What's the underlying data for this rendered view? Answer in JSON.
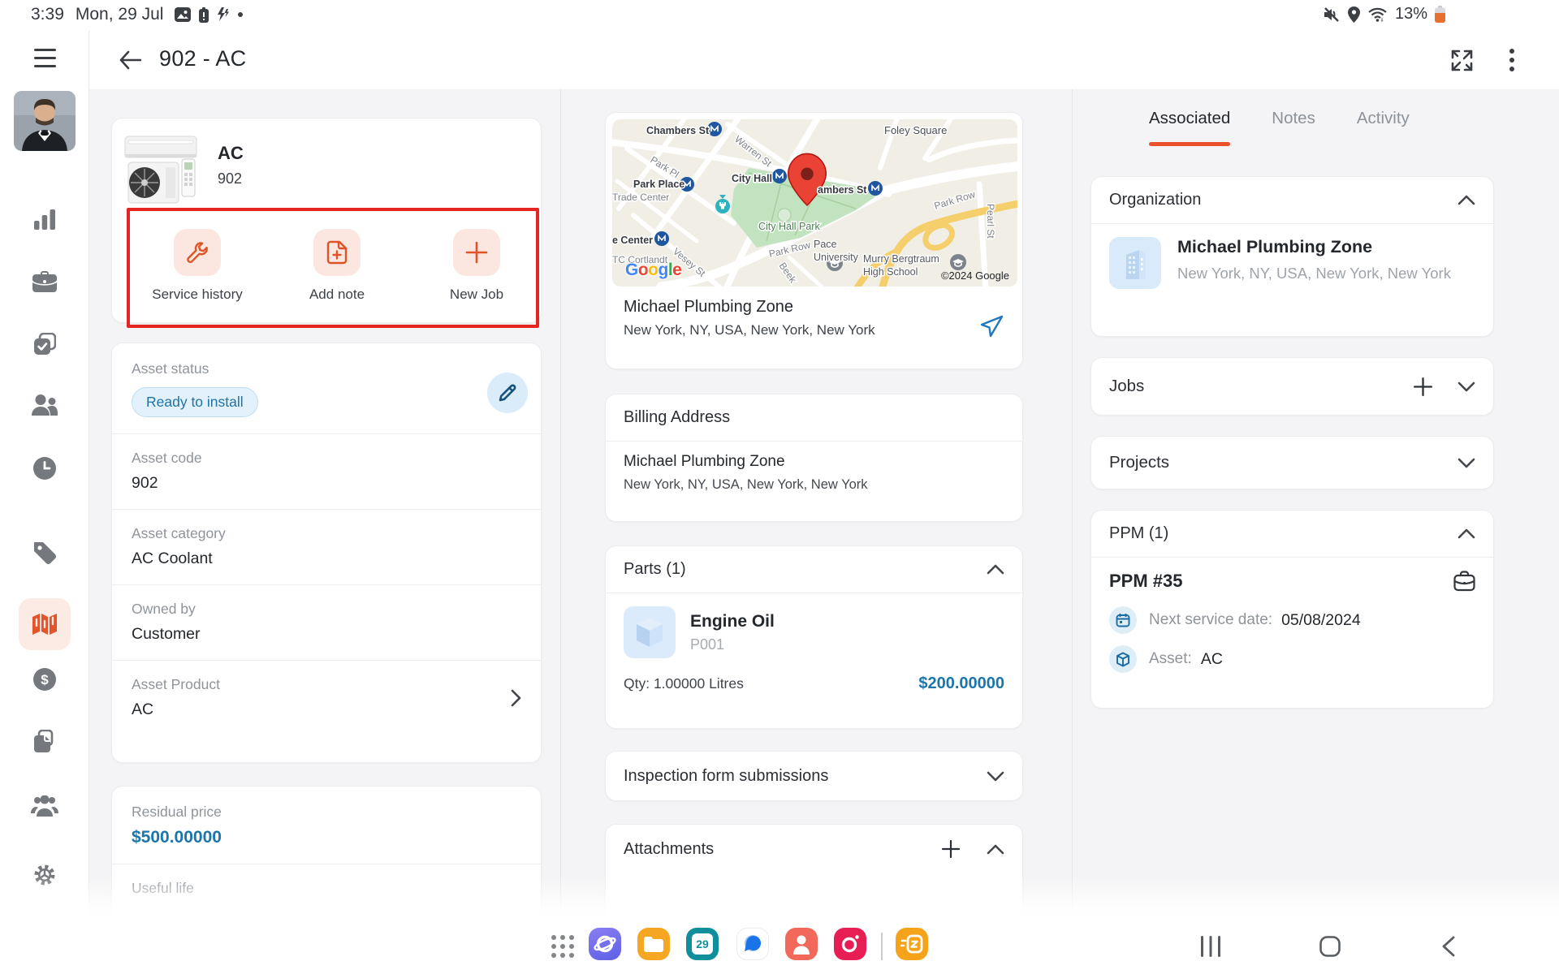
{
  "status_bar": {
    "time": "3:39",
    "date": "Mon, 29 Jul",
    "battery": "13%"
  },
  "header": {
    "title": "902 - AC"
  },
  "asset": {
    "name": "AC",
    "code": "902",
    "actions": {
      "service_history": "Service history",
      "add_note": "Add note",
      "new_job": "New Job"
    },
    "fields": {
      "status_label": "Asset status",
      "status_value": "Ready to install",
      "code_label": "Asset code",
      "code_value": "902",
      "category_label": "Asset category",
      "category_value": "AC Coolant",
      "owned_label": "Owned by",
      "owned_value": "Customer",
      "product_label": "Asset Product",
      "product_value": "AC",
      "residual_label": "Residual price",
      "residual_value": "$500.00000",
      "useful_label": "Useful life"
    }
  },
  "location": {
    "name": "Michael Plumbing Zone",
    "address": "New York, NY, USA, New York, New York"
  },
  "billing": {
    "title": "Billing Address",
    "name": "Michael Plumbing Zone",
    "address": "New York, NY, USA, New York, New York"
  },
  "parts": {
    "title": "Parts (1)",
    "name": "Engine Oil",
    "code": "P001",
    "qty": "Qty: 1.00000 Litres",
    "price": "$200.00000"
  },
  "inspection": {
    "title": "Inspection form submissions"
  },
  "attachments": {
    "title": "Attachments"
  },
  "tabs": {
    "associated": "Associated",
    "notes": "Notes",
    "activity": "Activity"
  },
  "organization": {
    "title": "Organization",
    "name": "Michael Plumbing Zone",
    "address": "New York, NY, USA, New York, New York"
  },
  "jobs": {
    "title": "Jobs"
  },
  "projects": {
    "title": "Projects"
  },
  "ppm": {
    "title": "PPM (1)",
    "name": "PPM #35",
    "next_label": "Next service date:",
    "next_value": "05/08/2024",
    "asset_label": "Asset:",
    "asset_value": "AC"
  },
  "map": {
    "google": "Google",
    "copyright": "©2024 Google",
    "labels": [
      "Chambers St",
      "Warren St",
      "Park Pl",
      "Park Place",
      "Trade Center",
      "City Hall",
      "City Hall Park",
      "Foley Square",
      "ambers St",
      "Park Row",
      "Park Row",
      "Pearl St",
      "Pace",
      "University",
      "Murry Bergtraum",
      "High School",
      "Vesey St",
      "e Center",
      "TC Cortlandt",
      "Beek"
    ]
  },
  "taskbar": {
    "calendar_day": "29"
  },
  "colors": {
    "accent": "#E8512C",
    "annotation_box": "#E42521",
    "link_blue": "#1B76AB",
    "status_pill_text": "#1E73A4"
  }
}
